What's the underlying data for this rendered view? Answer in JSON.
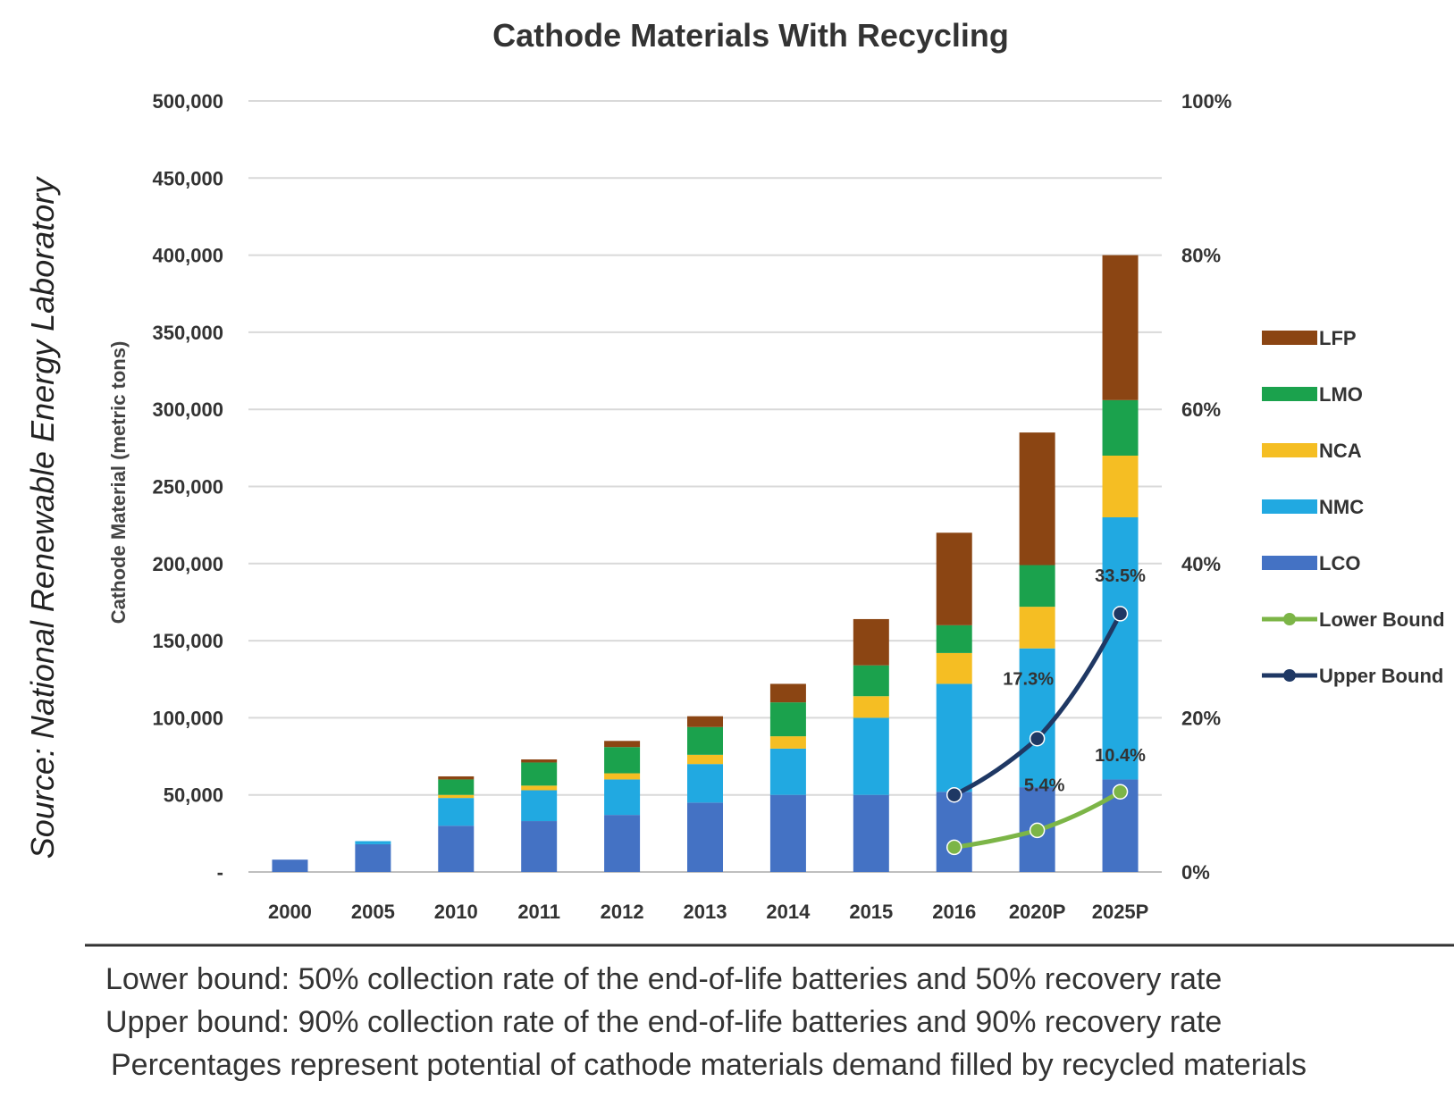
{
  "source": "Source: National Renewable Energy Laboratory",
  "chart_data": {
    "type": "bar",
    "stacked": true,
    "title": "Cathode Materials With Recycling",
    "ylabel": "Cathode Material (metric tons)",
    "ylim": [
      0,
      500000
    ],
    "y2lim": [
      0,
      100
    ],
    "y_ticks": [
      "-",
      "50,000",
      "100,000",
      "150,000",
      "200,000",
      "250,000",
      "300,000",
      "350,000",
      "400,000",
      "450,000",
      "500,000"
    ],
    "y2_ticks": [
      "0%",
      "20%",
      "40%",
      "60%",
      "80%",
      "100%"
    ],
    "categories": [
      "2000",
      "2005",
      "2010",
      "2011",
      "2012",
      "2013",
      "2014",
      "2015",
      "2016",
      "2020P",
      "2025P"
    ],
    "series": [
      {
        "name": "LCO",
        "color": "#4472C4",
        "values": [
          8000,
          18000,
          30000,
          33000,
          37000,
          45000,
          50000,
          50000,
          52000,
          55000,
          60000
        ]
      },
      {
        "name": "NMC",
        "color": "#21A9E1",
        "values": [
          0,
          2000,
          18000,
          20000,
          23000,
          25000,
          30000,
          50000,
          70000,
          90000,
          170000
        ]
      },
      {
        "name": "NCA",
        "color": "#F5BE23",
        "values": [
          0,
          0,
          2000,
          3000,
          4000,
          6000,
          8000,
          14000,
          20000,
          27000,
          40000
        ]
      },
      {
        "name": "LMO",
        "color": "#1BA24D",
        "values": [
          0,
          0,
          10000,
          15000,
          17000,
          18000,
          22000,
          20000,
          18000,
          27000,
          36000
        ]
      },
      {
        "name": "LFP",
        "color": "#8B4513",
        "values": [
          0,
          0,
          2000,
          2000,
          4000,
          7000,
          12000,
          30000,
          60000,
          86000,
          94000
        ]
      }
    ],
    "lines": [
      {
        "name": "Lower Bound",
        "color": "#7CB547",
        "categories": [
          "2016",
          "2020P",
          "2025P"
        ],
        "values_percent": [
          3.2,
          5.4,
          10.4
        ]
      },
      {
        "name": "Upper Bound",
        "color": "#1F3864",
        "categories": [
          "2016",
          "2020P",
          "2025P"
        ],
        "values_percent": [
          10.0,
          17.3,
          33.5
        ]
      }
    ],
    "annotations": [
      "33.5%",
      "17.3%",
      "10.4%",
      "5.4%"
    ],
    "legend": [
      "LFP",
      "LMO",
      "NCA",
      "NMC",
      "LCO",
      "Lower Bound",
      "Upper Bound"
    ],
    "legend_position": "right",
    "grid": true
  },
  "notes": [
    "Lower bound: 50% collection rate of the end-of-life batteries and 50% recovery rate",
    "Upper bound: 90% collection rate of the end-of-life batteries and 90% recovery rate",
    "Percentages represent potential of cathode materials demand filled by recycled materials"
  ]
}
